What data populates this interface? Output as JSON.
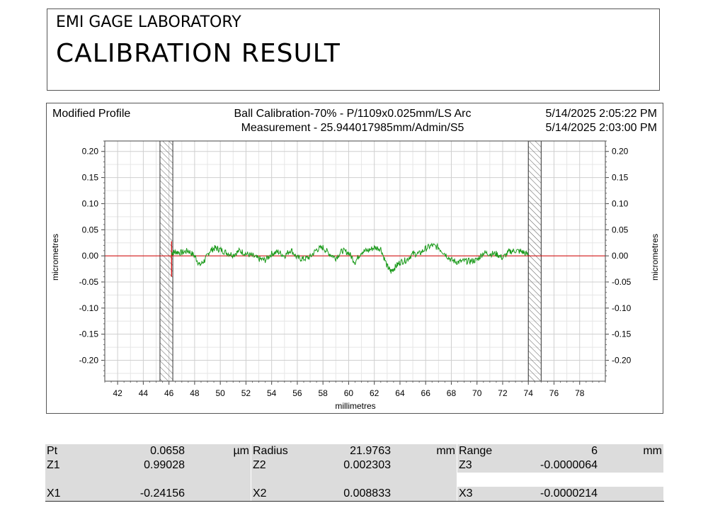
{
  "header": {
    "lab_name": "EMI GAGE LABORATORY",
    "title": "CALIBRATION RESULT"
  },
  "chart_data": {
    "type": "line",
    "panel_label": "Modified Profile",
    "info_line1": "Ball Calibration-70% - P/1109x0.025mm/LS Arc",
    "info_line2": "Measurement - 25.944017985mm/Admin/S5",
    "date_line1": "5/14/2025 2:05:22 PM",
    "date_line2": "5/14/2025 2:03:00 PM",
    "xlabel": "millimetres",
    "ylabel": "micrometres",
    "xlim": [
      41,
      80
    ],
    "ylim": [
      -0.24,
      0.22
    ],
    "x_ticks": [
      "42",
      "44",
      "46",
      "48",
      "50",
      "52",
      "54",
      "56",
      "58",
      "60",
      "62",
      "64",
      "66",
      "68",
      "70",
      "72",
      "74",
      "76",
      "78"
    ],
    "y_ticks": [
      "0.20",
      "0.15",
      "0.10",
      "0.05",
      "0.00",
      "-0.05",
      "-0.10",
      "-0.15",
      "-0.20"
    ],
    "grid": true,
    "excluded_regions": [
      [
        45.3,
        46.3
      ],
      [
        74.0,
        75.0
      ]
    ],
    "reference_line": {
      "y": 0.0,
      "color": "#d40000"
    },
    "series": [
      {
        "color": "#1a9a1a",
        "x": [
          46.2,
          46.5,
          47.0,
          47.5,
          48.0,
          48.4,
          48.8,
          49.2,
          49.6,
          50.0,
          50.5,
          51.0,
          51.5,
          52.0,
          52.5,
          53.0,
          53.5,
          54.0,
          54.5,
          55.0,
          55.5,
          56.0,
          56.5,
          57.0,
          57.5,
          58.0,
          58.5,
          59.0,
          59.5,
          60.0,
          60.5,
          61.0,
          61.5,
          62.0,
          62.5,
          63.0,
          63.3,
          63.6,
          64.0,
          64.5,
          65.0,
          65.5,
          66.0,
          66.5,
          67.0,
          67.5,
          68.0,
          68.5,
          69.0,
          69.5,
          70.0,
          70.5,
          71.0,
          71.5,
          72.0,
          72.5,
          73.0,
          73.5,
          74.0
        ],
        "y": [
          0.005,
          0.008,
          0.006,
          0.01,
          0.0,
          -0.018,
          -0.008,
          0.01,
          0.015,
          0.012,
          0.006,
          0.002,
          0.01,
          0.004,
          0.0,
          -0.006,
          -0.008,
          0.004,
          0.008,
          0.0,
          0.012,
          -0.004,
          -0.006,
          -0.002,
          0.012,
          0.016,
          0.004,
          -0.004,
          0.01,
          0.006,
          -0.012,
          0.008,
          0.01,
          0.016,
          0.014,
          -0.02,
          -0.03,
          -0.022,
          -0.012,
          -0.008,
          0.004,
          0.004,
          0.014,
          0.02,
          0.016,
          0.004,
          -0.008,
          -0.012,
          -0.01,
          -0.01,
          -0.008,
          0.006,
          0.004,
          0.004,
          -0.004,
          0.008,
          0.01,
          0.008,
          0.002
        ]
      }
    ]
  },
  "results": {
    "rows": [
      [
        {
          "label": "Pt",
          "value": "0.0658",
          "unit": "µm"
        },
        {
          "label": "Radius",
          "value": "21.9763",
          "unit": "mm"
        },
        {
          "label": "Range",
          "value": "6",
          "unit": "mm"
        }
      ],
      [
        {
          "label": "Z1",
          "value": "0.99028",
          "unit": ""
        },
        {
          "label": "Z2",
          "value": "0.002303",
          "unit": ""
        },
        {
          "label": "Z3",
          "value": "-0.0000064",
          "unit": ""
        }
      ],
      [
        {
          "label": "X1",
          "value": "-0.24156",
          "unit": ""
        },
        {
          "label": "X2",
          "value": "0.008833",
          "unit": ""
        },
        {
          "label": "X3",
          "value": "-0.0000214",
          "unit": ""
        }
      ]
    ]
  }
}
